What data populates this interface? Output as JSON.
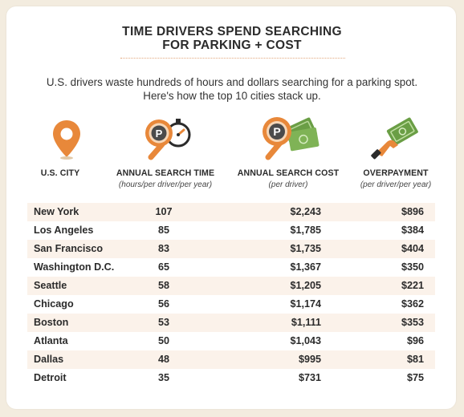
{
  "header": {
    "title_line1": "TIME DRIVERS SPEND SEARCHING",
    "title_line2": "FOR PARKING + COST",
    "subtitle_line1": "U.S. drivers waste hundreds of hours and dollars searching for a parking spot.",
    "subtitle_line2": "Here's how the top 10 cities stack up."
  },
  "icons": {
    "city": "map-pin-icon",
    "time": "parking-magnifier-stopwatch-icon",
    "cost": "parking-magnifier-money-icon",
    "overpayment": "hand-money-icon"
  },
  "colors": {
    "accent": "#e8883a",
    "row_shade": "#fbf2ea",
    "text": "#2b2b2b"
  },
  "chart_data": {
    "type": "table",
    "columns": [
      {
        "key": "city",
        "label": "U.S. CITY",
        "sublabel": ""
      },
      {
        "key": "time",
        "label": "ANNUAL SEARCH TIME",
        "sublabel": "(hours/per driver/per year)"
      },
      {
        "key": "cost",
        "label": "ANNUAL SEARCH COST",
        "sublabel": "(per driver)"
      },
      {
        "key": "over",
        "label": "OVERPAYMENT",
        "sublabel": "(per driver/per year)"
      }
    ],
    "rows": [
      {
        "city": "New York",
        "time": "107",
        "cost": "$2,243",
        "over": "$896"
      },
      {
        "city": "Los Angeles",
        "time": "85",
        "cost": "$1,785",
        "over": "$384"
      },
      {
        "city": "San Francisco",
        "time": "83",
        "cost": "$1,735",
        "over": "$404"
      },
      {
        "city": "Washington D.C.",
        "time": "65",
        "cost": "$1,367",
        "over": "$350"
      },
      {
        "city": "Seattle",
        "time": "58",
        "cost": "$1,205",
        "over": "$221"
      },
      {
        "city": "Chicago",
        "time": "56",
        "cost": "$1,174",
        "over": "$362"
      },
      {
        "city": "Boston",
        "time": "53",
        "cost": "$1,111",
        "over": "$353"
      },
      {
        "city": "Atlanta",
        "time": "50",
        "cost": "$1,043",
        "over": "$96"
      },
      {
        "city": "Dallas",
        "time": "48",
        "cost": "$995",
        "over": "$81"
      },
      {
        "city": "Detroit",
        "time": "35",
        "cost": "$731",
        "over": "$75"
      }
    ]
  }
}
